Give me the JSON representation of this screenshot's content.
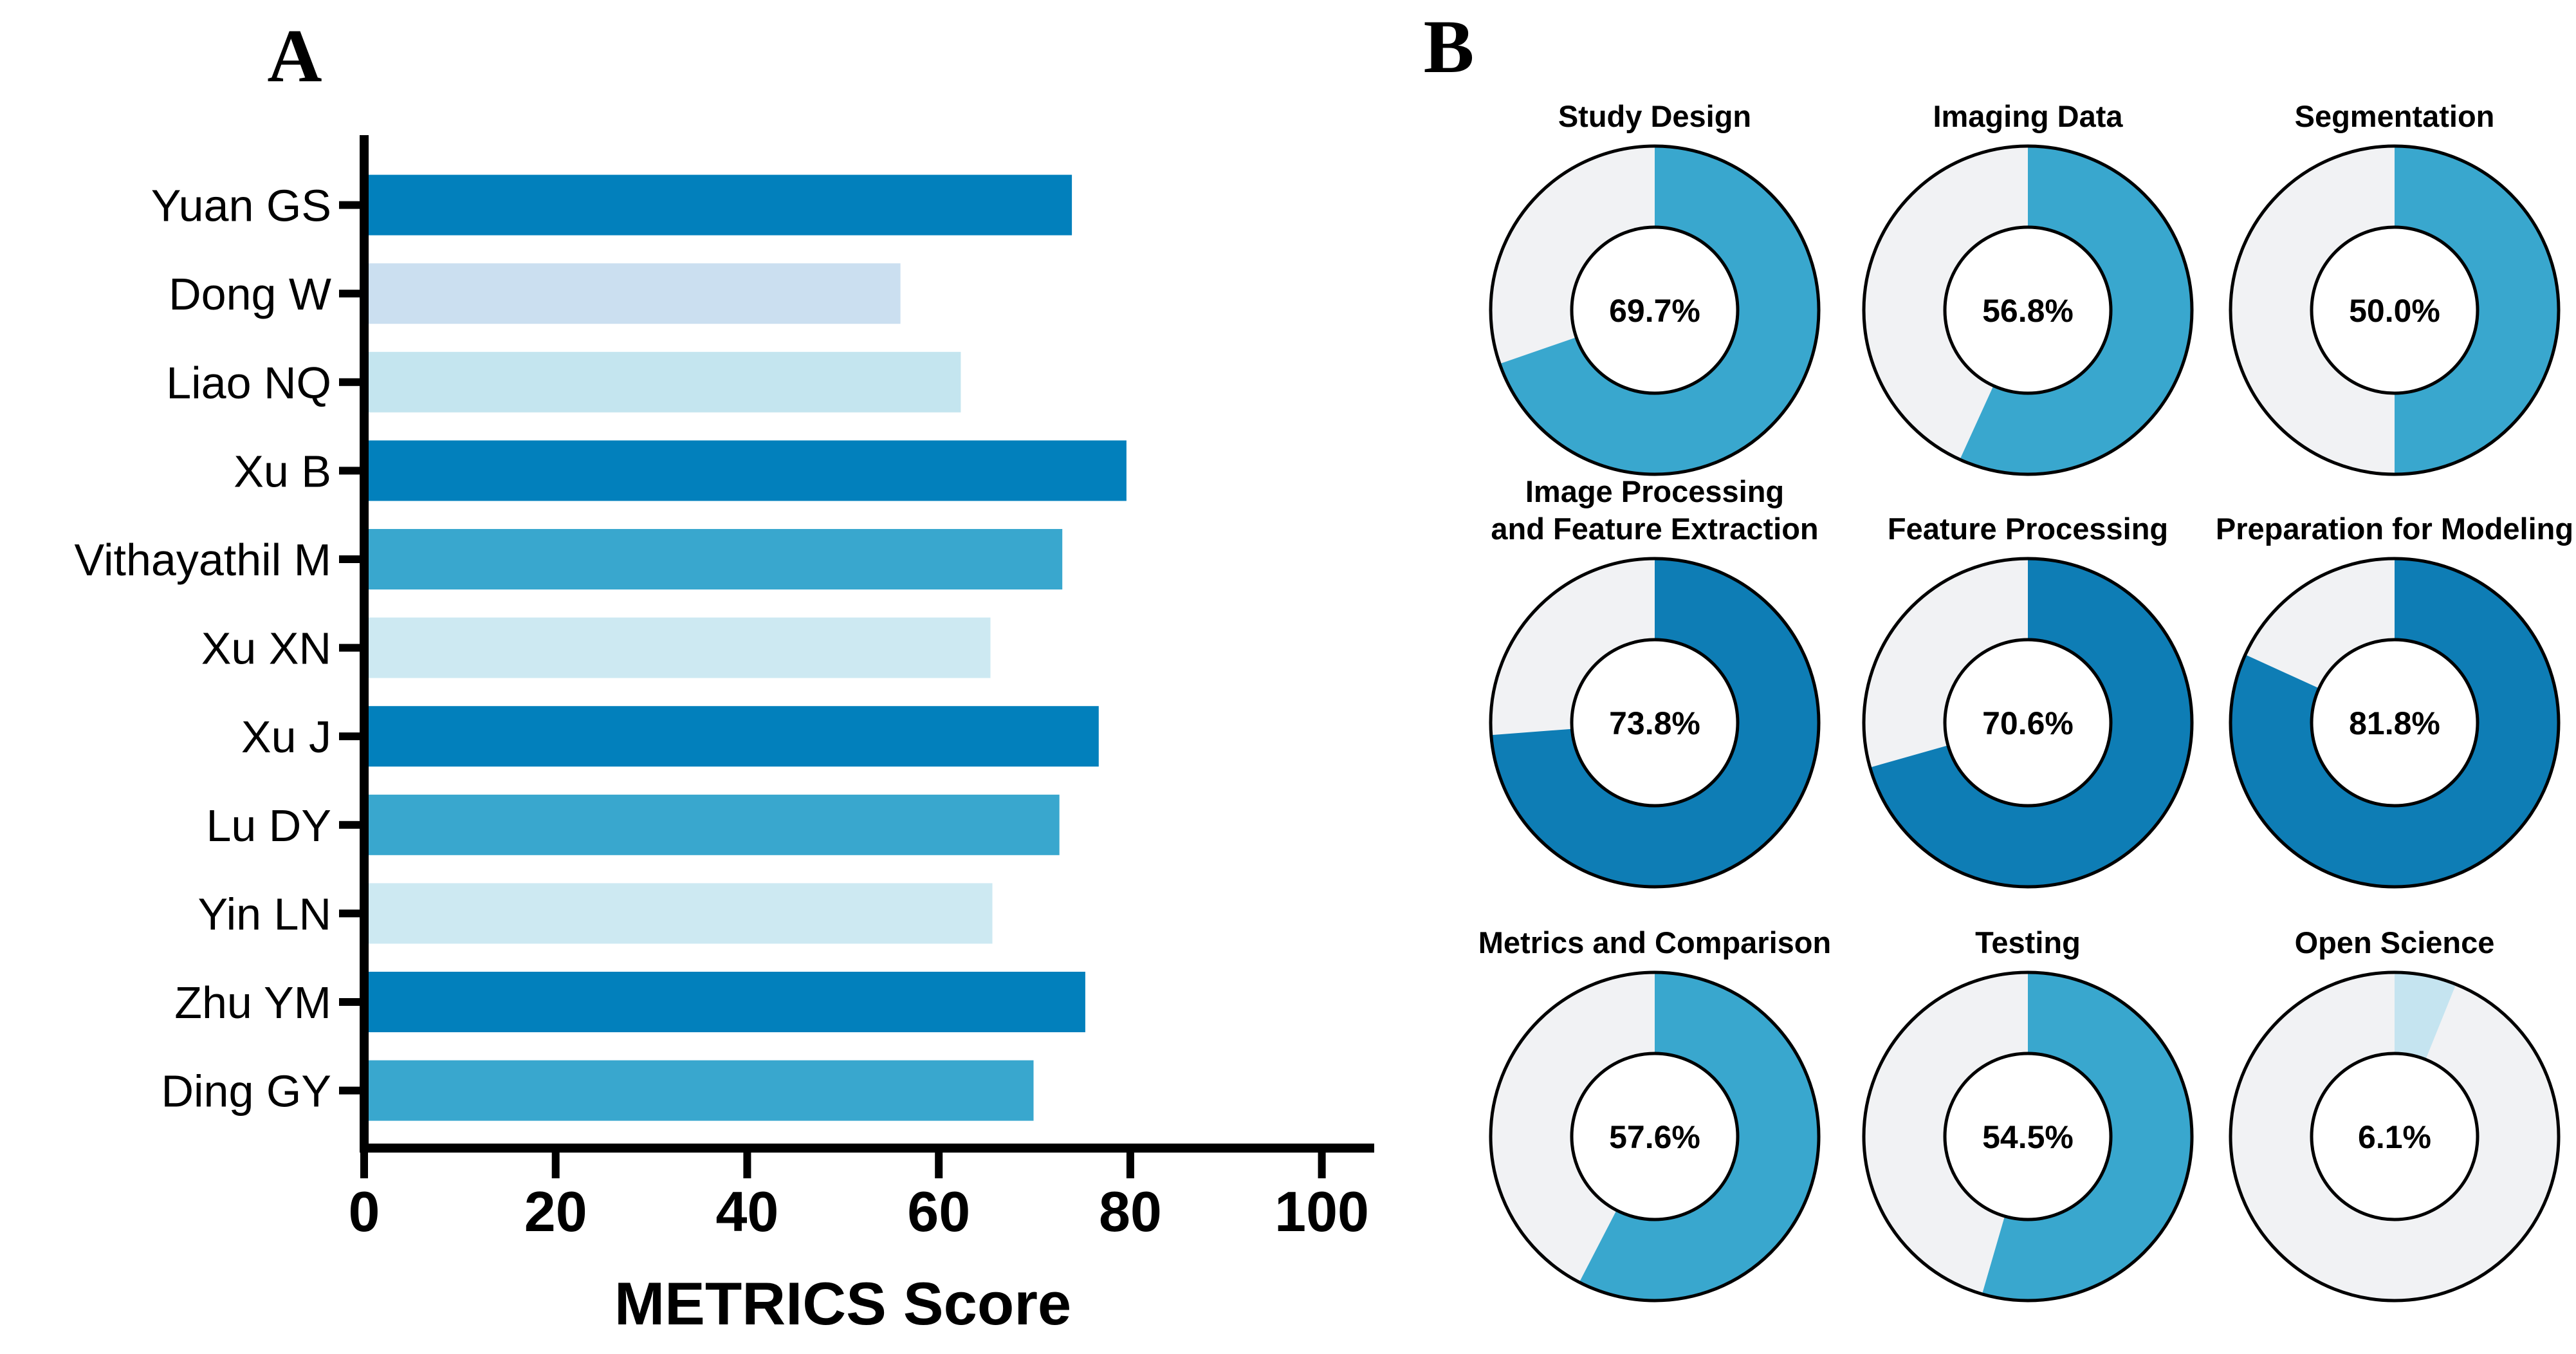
{
  "panels": {
    "a": "A",
    "b": "B"
  },
  "colors": {
    "bar_dark": "#0280BC",
    "bar_medium": "#39A7CE",
    "bar_pale_periwinkle": "#CBDFF0",
    "bar_pale_cyan": "#C4E5EF",
    "bar_pale_cyan_light": "#CDE9F2",
    "donut_dark": "#0E7DB5",
    "donut_medium": "#39A7CE",
    "donut_pale": "#C5E4F0",
    "donut_remainder": "#F1F2F4",
    "outline": "#000000",
    "text": "#000000"
  },
  "chart_data": [
    {
      "type": "bar",
      "orientation": "horizontal",
      "title": "",
      "xlabel": "METRICS Score",
      "ylabel": "",
      "xlim": [
        0,
        105
      ],
      "xticks": [
        0,
        20,
        40,
        60,
        80,
        100
      ],
      "grid": false,
      "legend": false,
      "categories": [
        "Yuan GS",
        "Dong W",
        "Liao NQ",
        "Xu B",
        "Vithayathil M",
        "Xu XN",
        "Xu J",
        "Lu DY",
        "Yin LN",
        "Zhu YM",
        "Ding GY"
      ],
      "values": [
        73.9,
        56.0,
        62.3,
        79.6,
        72.9,
        65.4,
        76.7,
        72.6,
        65.6,
        75.3,
        69.9
      ],
      "bar_colors": [
        "#0280BC",
        "#CBDFF0",
        "#C4E5EF",
        "#0280BC",
        "#39A7CE",
        "#CDE9F2",
        "#0280BC",
        "#39A7CE",
        "#CDE9F2",
        "#0280BC",
        "#39A7CE"
      ]
    },
    {
      "type": "pie",
      "subtype": "donut-grid-3x3",
      "label_format": "percent-one-decimal",
      "legend": false,
      "remainder_color": "#F1F2F4",
      "items": [
        {
          "title": "Study Design",
          "title_lines": [
            "Study Design"
          ],
          "value": 69.7,
          "color": "#39A7CE"
        },
        {
          "title": "Imaging Data",
          "title_lines": [
            "Imaging Data"
          ],
          "value": 56.8,
          "color": "#39A7CE"
        },
        {
          "title": "Segmentation",
          "title_lines": [
            "Segmentation"
          ],
          "value": 50.0,
          "color": "#39A7CE"
        },
        {
          "title": "Image Processing and Feature Extraction",
          "title_lines": [
            "Image Processing",
            "and Feature Extraction"
          ],
          "value": 73.8,
          "color": "#0E7DB5"
        },
        {
          "title": "Feature Processing",
          "title_lines": [
            "Feature Processing"
          ],
          "value": 70.6,
          "color": "#0E7DB5"
        },
        {
          "title": "Preparation for Modeling",
          "title_lines": [
            "Preparation for Modeling"
          ],
          "value": 81.8,
          "color": "#0E7DB5"
        },
        {
          "title": "Metrics and Comparison",
          "title_lines": [
            "Metrics and Comparison"
          ],
          "value": 57.6,
          "color": "#39A7CE"
        },
        {
          "title": "Testing",
          "title_lines": [
            "Testing"
          ],
          "value": 54.5,
          "color": "#39A7CE"
        },
        {
          "title": "Open Science",
          "title_lines": [
            "Open Science"
          ],
          "value": 6.1,
          "color": "#C5E4F0"
        }
      ]
    }
  ]
}
